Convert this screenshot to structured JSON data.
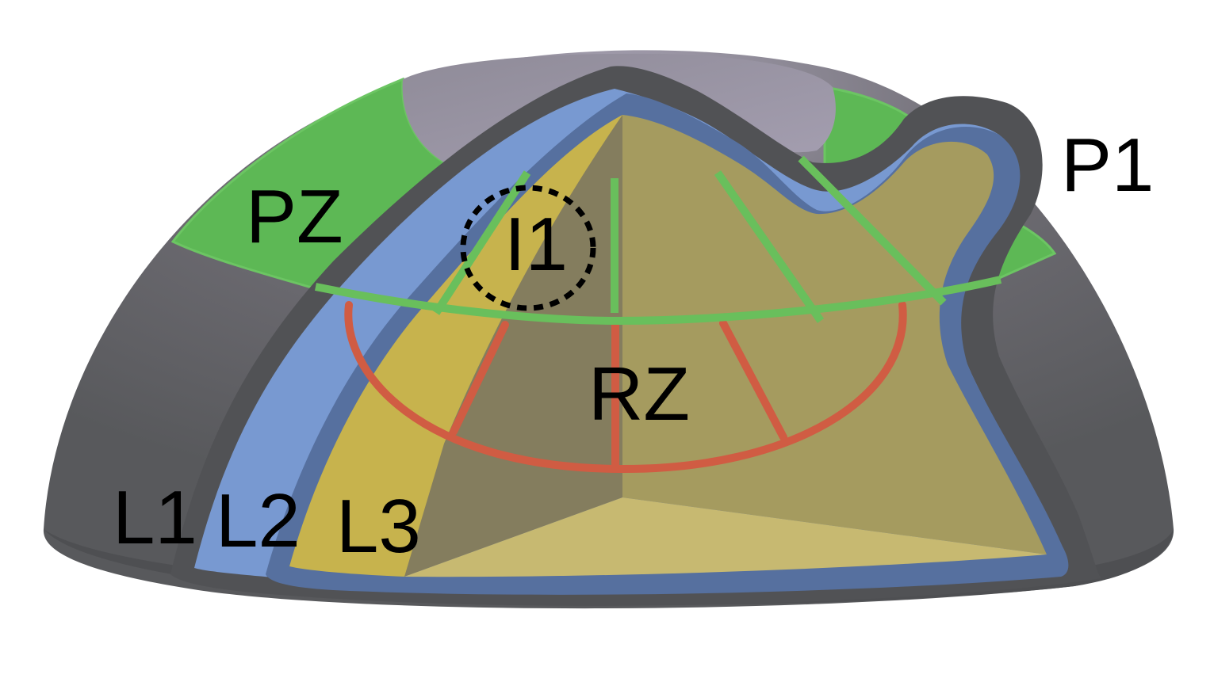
{
  "labels": {
    "pz": "PZ",
    "p1": "P1",
    "i1": "I1",
    "rz": "RZ",
    "l1": "L1",
    "l2": "L2",
    "l3": "L3"
  },
  "colors": {
    "outer_dome": "#5d5e62",
    "outer_dome_highlight": "#a9a3b5",
    "dark_outline": "#515255",
    "pz_zone": "#5db855",
    "l2_layer": "#7899d1",
    "blue_outline": "#56709f",
    "l3_layer": "#c7b34d",
    "inner_left_face": "#847d5e",
    "inner_right_face": "#a59b5f",
    "inner_floor": "#c7b971",
    "green_lines": "#69bf5c",
    "red_lines": "#d05c43",
    "dashed_circle": "#000000"
  }
}
